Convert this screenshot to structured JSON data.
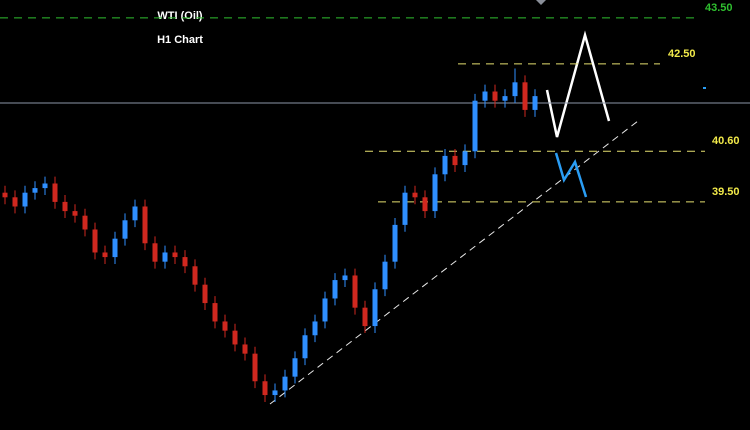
{
  "chart_data": {
    "type": "candlestick",
    "title": "WTI (Oil)",
    "subtitle": "H1 Chart",
    "open": [
      39.7,
      39.6,
      39.4,
      39.7,
      39.8,
      39.9,
      39.5,
      39.3,
      39.2,
      38.9,
      38.4,
      38.3,
      38.7,
      39.1,
      39.4,
      38.6,
      38.2,
      38.4,
      38.3,
      38.1,
      37.7,
      37.3,
      36.9,
      36.7,
      36.4,
      36.2,
      35.6,
      35.3,
      35.4,
      35.7,
      36.1,
      36.6,
      36.9,
      37.4,
      37.8,
      37.9,
      37.2,
      36.8,
      37.6,
      38.2,
      39.0,
      39.7,
      39.6,
      39.3,
      40.1,
      40.5,
      40.3,
      40.6,
      41.7,
      41.9,
      41.7,
      41.8,
      42.1,
      41.5
    ],
    "high": [
      39.85,
      39.75,
      39.85,
      39.95,
      40.05,
      40.05,
      39.65,
      39.45,
      39.35,
      39.05,
      38.55,
      38.85,
      39.25,
      39.55,
      39.55,
      38.75,
      38.55,
      38.55,
      38.45,
      38.25,
      37.85,
      37.45,
      37.05,
      36.85,
      36.55,
      36.35,
      35.75,
      35.55,
      35.85,
      36.25,
      36.75,
      37.05,
      37.55,
      37.95,
      38.05,
      38.05,
      37.35,
      37.75,
      38.35,
      39.15,
      39.85,
      39.85,
      39.75,
      40.25,
      40.65,
      40.65,
      40.75,
      41.85,
      42.05,
      42.05,
      41.95,
      42.4,
      42.25,
      41.95
    ],
    "low": [
      39.45,
      39.25,
      39.25,
      39.55,
      39.65,
      39.35,
      39.15,
      39.05,
      38.75,
      38.25,
      38.15,
      38.15,
      38.55,
      38.95,
      38.45,
      38.05,
      38.05,
      38.15,
      37.95,
      37.55,
      37.15,
      36.75,
      36.55,
      36.25,
      36.05,
      35.45,
      35.15,
      35.15,
      35.25,
      35.55,
      35.95,
      36.45,
      36.75,
      37.25,
      37.65,
      37.05,
      36.65,
      36.65,
      37.45,
      38.05,
      38.85,
      39.45,
      39.15,
      39.15,
      39.95,
      40.15,
      40.15,
      40.45,
      41.55,
      41.55,
      41.55,
      41.65,
      41.35,
      41.35
    ],
    "close": [
      39.6,
      39.4,
      39.7,
      39.8,
      39.9,
      39.5,
      39.3,
      39.2,
      38.9,
      38.4,
      38.3,
      38.7,
      39.1,
      39.4,
      38.6,
      38.2,
      38.4,
      38.3,
      38.1,
      37.7,
      37.3,
      36.9,
      36.7,
      36.4,
      36.2,
      35.6,
      35.3,
      35.4,
      35.7,
      36.1,
      36.6,
      36.9,
      37.4,
      37.8,
      37.9,
      37.2,
      36.8,
      37.6,
      38.2,
      39.0,
      39.7,
      39.6,
      39.3,
      40.1,
      40.5,
      40.3,
      40.6,
      41.7,
      41.9,
      41.7,
      41.8,
      42.1,
      41.5,
      41.8
    ],
    "up_color": "#2f8fff",
    "down_color": "#d0281f",
    "ylim": [
      34.54,
      43.89
    ],
    "current_price": 41.65,
    "levels": [
      {
        "value": 43.5,
        "label": "43.50",
        "color": "#2fbf2f"
      },
      {
        "value": 42.5,
        "label": "42.50",
        "color": "#e6e070"
      },
      {
        "value": 40.6,
        "label": "40.60",
        "color": "#e6e070"
      },
      {
        "value": 39.5,
        "label": "39.50",
        "color": "#e6e070"
      }
    ]
  }
}
